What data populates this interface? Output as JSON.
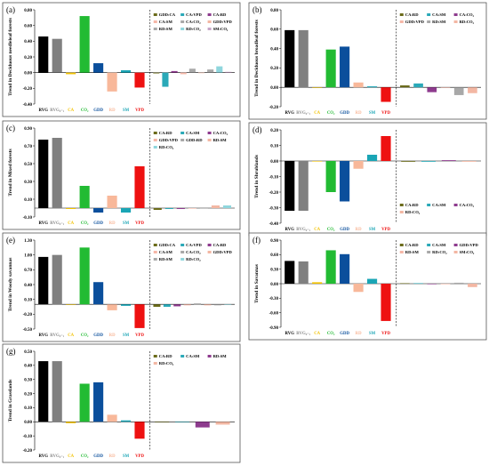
{
  "colors": {
    "RVG": "#000000",
    "RVGsub": "#808080",
    "CA": "#f2c200",
    "CO2": "#22bb33",
    "GDD": "#0b4f9c",
    "RD": "#f8b89a",
    "SM": "#1aa5b5",
    "VPD": "#ee1111",
    "inter_olive": "#6b6b1a",
    "inter_teal": "#2aa9b8",
    "inter_purple": "#8e3b8e",
    "inter_peach": "#f6b7a7",
    "inter_gray": "#a8a8a8",
    "inter_cyan": "#8fd6dd",
    "inter_lightpurple": "#c8a6c8",
    "inter_salmon": "#f3b7a3"
  },
  "chart_data": [
    {
      "type": "bar",
      "panel_label": "(a)",
      "ylabel": "Trend in Deciduous needleleaf forests",
      "ylim": [
        -0.4,
        0.8
      ],
      "yticks": [
        "-0.40",
        "-0.20",
        "0.00",
        "0.20",
        "0.40",
        "0.60",
        "0.80"
      ],
      "main": {
        "categories": [
          "RVG",
          "RVG₀₋₁",
          "CA",
          "CO₂",
          "GDD",
          "RD",
          "SM",
          "VPD"
        ],
        "values": [
          0.46,
          0.43,
          -0.02,
          0.72,
          0.12,
          -0.24,
          0.03,
          -0.19
        ]
      },
      "interactions": {
        "labels": [
          "GDD:CA",
          "CA:VPD",
          "CA:RD",
          "CA:SM",
          "CA:CO₂",
          "GDD:VPD",
          "RD:SM",
          "RD:CO₂",
          "SM:CO₂"
        ],
        "values": [
          -0.01,
          -0.18,
          0.02,
          -0.02,
          0.05,
          0.0,
          0.04,
          0.08,
          0.01
        ],
        "color_keys": [
          "inter_olive",
          "inter_teal",
          "inter_purple",
          "inter_peach",
          "inter_gray",
          "inter_salmon",
          "inter_gray",
          "inter_cyan",
          "inter_lightpurple"
        ]
      }
    },
    {
      "type": "bar",
      "panel_label": "(b)",
      "ylabel": "Trend in Deciduous broadleaf forests",
      "ylim": [
        -0.2,
        0.8
      ],
      "yticks": [
        "-0.20",
        "0.00",
        "0.20",
        "0.40",
        "0.60",
        "0.80"
      ],
      "main": {
        "categories": [
          "RVG",
          "RVG₀₋₁",
          "CA",
          "CO₂",
          "GDD",
          "RD",
          "SM",
          "VPD"
        ],
        "values": [
          0.59,
          0.59,
          0.0,
          0.39,
          0.42,
          0.05,
          0.01,
          -0.15
        ]
      },
      "interactions": {
        "labels": [
          "CA:RD",
          "CA:SM",
          "CA:CO₂",
          "GDD:VPD",
          "RD:SM",
          "RD:CO₂"
        ],
        "values": [
          0.02,
          0.04,
          -0.05,
          0.0,
          -0.08,
          -0.06
        ],
        "color_keys": [
          "inter_olive",
          "inter_teal",
          "inter_purple",
          "inter_peach",
          "inter_gray",
          "inter_salmon"
        ]
      }
    },
    {
      "type": "bar",
      "panel_label": "(c)",
      "ylabel": "Trend in Mixed forests",
      "ylim": [
        -0.1,
        0.9
      ],
      "yticks": [
        "-0.10",
        "0.10",
        "0.30",
        "0.50",
        "0.70",
        "0.90"
      ],
      "main": {
        "categories": [
          "RVG",
          "RVG₀₋₁",
          "CA",
          "CO₂",
          "GDD",
          "RD",
          "SM",
          "VPD"
        ],
        "values": [
          0.77,
          0.79,
          -0.01,
          0.25,
          -0.05,
          0.14,
          -0.05,
          0.47
        ]
      },
      "interactions": {
        "labels": [
          "CA:RD",
          "CA:SM",
          "CA:CO₂",
          "GDD:VPD",
          "GDD:RD",
          "RD:SM",
          "RD:CO₂"
        ],
        "values": [
          -0.02,
          -0.01,
          -0.01,
          0.0,
          0.0,
          0.03,
          0.03
        ],
        "color_keys": [
          "inter_olive",
          "inter_teal",
          "inter_purple",
          "inter_peach",
          "inter_gray",
          "inter_salmon",
          "inter_cyan"
        ]
      }
    },
    {
      "type": "bar",
      "panel_label": "(d)",
      "ylabel": "Trend in Shrublands",
      "ylim": [
        -0.4,
        0.2
      ],
      "yticks": [
        "-0.40",
        "-0.30",
        "-0.20",
        "-0.10",
        "0.00",
        "0.10",
        "0.20"
      ],
      "main": {
        "categories": [
          "RVG",
          "RVG₀₋₁",
          "CA",
          "CO₂",
          "GDD",
          "RD",
          "SM",
          "VPD"
        ],
        "values": [
          -0.32,
          -0.32,
          0.0,
          -0.2,
          -0.26,
          -0.05,
          0.04,
          0.16
        ]
      },
      "interactions": {
        "labels": [
          "CA:RD",
          "CA:SM",
          "CA:CO₂",
          "RD:CO₂"
        ],
        "values": [
          -0.005,
          -0.005,
          0.005,
          -0.005
        ],
        "color_keys": [
          "inter_olive",
          "inter_teal",
          "inter_purple",
          "inter_salmon"
        ]
      }
    },
    {
      "type": "bar",
      "panel_label": "(e)",
      "ylabel": "Trend in Woody savannas",
      "ylim": [
        -0.5,
        1.3
      ],
      "yticks": [
        "-0.50",
        "-0.20",
        "0.10",
        "0.40",
        "0.70",
        "1.00",
        "1.30"
      ],
      "main": {
        "categories": [
          "RVG",
          "RVG₀₋₁",
          "CA",
          "CO₂",
          "GDD",
          "RD",
          "SM",
          "VPD"
        ],
        "values": [
          0.96,
          1.0,
          -0.01,
          1.15,
          0.45,
          -0.12,
          -0.03,
          -0.48
        ]
      },
      "interactions": {
        "labels": [
          "GDD:CA",
          "CA:VPD",
          "CA:RD",
          "CA:SM",
          "CA:CO₂",
          "GDD:VPD",
          "RD:SM",
          "RD:CO₂"
        ],
        "values": [
          -0.05,
          -0.05,
          -0.04,
          -0.02,
          0.02,
          -0.02,
          -0.02,
          -0.01
        ],
        "color_keys": [
          "inter_olive",
          "inter_teal",
          "inter_purple",
          "inter_peach",
          "inter_gray",
          "inter_salmon",
          "inter_gray",
          "inter_cyan"
        ]
      }
    },
    {
      "type": "bar",
      "panel_label": "(f)",
      "ylabel": "Trend in Savannas",
      "ylim": [
        -0.9,
        0.9
      ],
      "yticks": [
        "-0.90",
        "-0.60",
        "-0.30",
        "0.00",
        "0.30",
        "0.60",
        "0.90"
      ],
      "main": {
        "categories": [
          "RVG",
          "RVG₀₋₁",
          "CA",
          "CO₂",
          "GDD",
          "RD",
          "SM",
          "VPD"
        ],
        "values": [
          0.47,
          0.46,
          0.03,
          0.69,
          0.61,
          -0.17,
          0.1,
          -0.77
        ]
      },
      "interactions": {
        "labels": [
          "CA:RD",
          "CA:SM",
          "GDD:VPD",
          "RD:SM",
          "RD:CO₂",
          "SM:CO₂"
        ],
        "values": [
          0.01,
          0.01,
          0.0,
          0.0,
          0.02,
          -0.07
        ],
        "color_keys": [
          "inter_olive",
          "inter_teal",
          "inter_purple",
          "inter_peach",
          "inter_gray",
          "inter_salmon"
        ]
      }
    },
    {
      "type": "bar",
      "panel_label": "(g)",
      "ylabel": "Trend in Grasslands",
      "ylim": [
        -0.2,
        0.5
      ],
      "yticks": [
        "-0.20",
        "-0.10",
        "0.00",
        "0.10",
        "0.20",
        "0.30",
        "0.40",
        "0.50"
      ],
      "main": {
        "categories": [
          "RVG",
          "RVG₀₋₁",
          "CA",
          "CO₂",
          "GDD",
          "RD",
          "SM",
          "VPD"
        ],
        "values": [
          0.43,
          0.43,
          -0.01,
          0.27,
          0.28,
          0.05,
          0.01,
          -0.12
        ]
      },
      "interactions": {
        "labels": [
          "CA:RD",
          "CA:SM",
          "RD:SM",
          "RD:CO₂"
        ],
        "values": [
          0.0,
          0.0,
          -0.04,
          -0.02
        ],
        "color_keys": [
          "inter_olive",
          "inter_teal",
          "inter_purple",
          "inter_salmon"
        ]
      }
    }
  ]
}
